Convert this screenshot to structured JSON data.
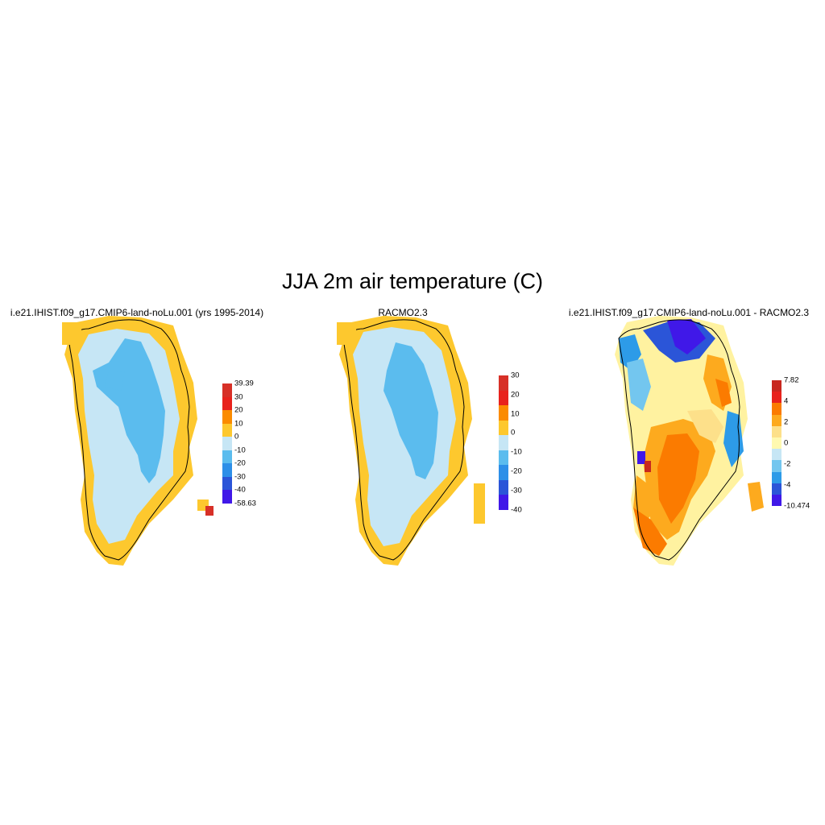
{
  "title": "JJA 2m air temperature (C)",
  "panels": [
    {
      "id": "model",
      "title": "i.e21.IHIST.f09_g17.CMIP6-land-noLu.001 (yrs 1995-2014)",
      "colorbar": {
        "labels": [
          "39.39",
          "30",
          "20",
          "10",
          "0",
          "-10",
          "-20",
          "-30",
          "-40",
          "-58.63"
        ],
        "colors": [
          "#d73027",
          "#e8221c",
          "#fb8b00",
          "#fdc82e",
          "#c6e6f5",
          "#5bbcee",
          "#2d8fe8",
          "#2b55d8",
          "#4018e8"
        ]
      }
    },
    {
      "id": "obs",
      "title": "RACMO2.3",
      "colorbar": {
        "labels": [
          "30",
          "20",
          "10",
          "0",
          "-10",
          "-20",
          "-30",
          "-40"
        ],
        "colors": [
          "#d73027",
          "#e8221c",
          "#fb8b00",
          "#fdc82e",
          "#c6e6f5",
          "#5bbcee",
          "#2d8fe8",
          "#2b55d8",
          "#4018e8"
        ]
      }
    },
    {
      "id": "diff",
      "title": "i.e21.IHIST.f09_g17.CMIP6-land-noLu.001 - RACMO2.3",
      "colorbar": {
        "labels": [
          "7.82",
          "4",
          "2",
          "0",
          "-2",
          "-4",
          "-10.474"
        ],
        "colors": [
          "#c8281f",
          "#e8221c",
          "#fb7b00",
          "#fdaa1e",
          "#fde08a",
          "#fff9b0",
          "#c6e6f5",
          "#73c6ef",
          "#2d9be8",
          "#2b55d8",
          "#4018e8"
        ]
      }
    }
  ],
  "legend_colors": {
    "coast": "#000000",
    "ice_interior": "#5bbcee",
    "ice_margin": "#c6e6f5",
    "coastal_band": "#fdc82e"
  }
}
